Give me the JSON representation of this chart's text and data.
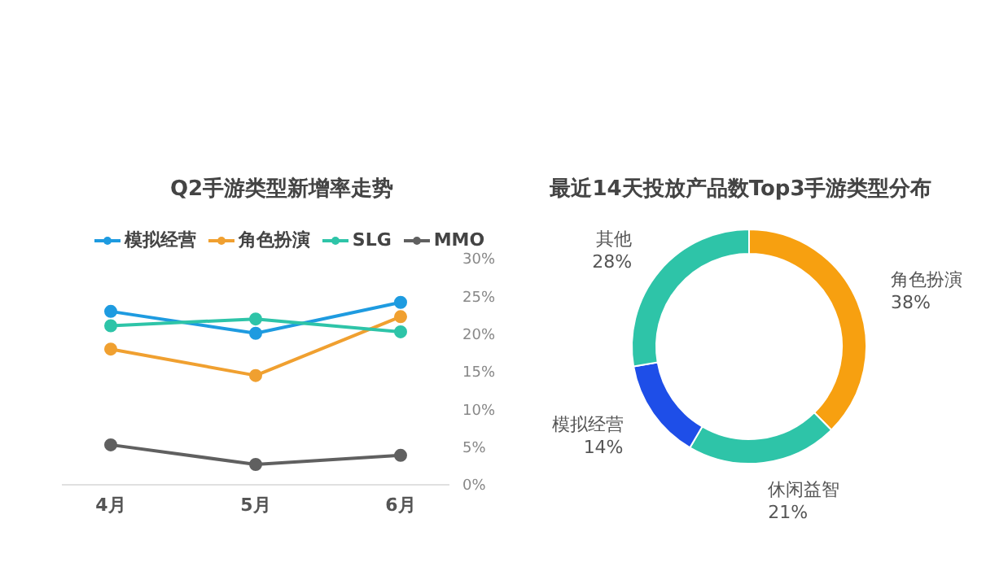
{
  "chart_data": [
    {
      "type": "line",
      "title": "Q2手游类型新增率走势",
      "categories": [
        "4月",
        "5月",
        "6月"
      ],
      "series": [
        {
          "name": "模拟经营",
          "color": "#1e9be0",
          "values": [
            23.0,
            20.1,
            24.2
          ]
        },
        {
          "name": "角色扮演",
          "color": "#f0a030",
          "values": [
            18.0,
            14.5,
            22.3
          ]
        },
        {
          "name": "SLG",
          "color": "#2ec4a8",
          "values": [
            21.1,
            22.0,
            20.3
          ]
        },
        {
          "name": "MMO",
          "color": "#606060",
          "values": [
            5.3,
            2.7,
            3.9
          ]
        }
      ],
      "ylim": [
        0,
        30
      ],
      "yticks": [
        {
          "value": 0,
          "label": "0%"
        },
        {
          "value": 5,
          "label": "5%"
        },
        {
          "value": 10,
          "label": "10%"
        },
        {
          "value": 15,
          "label": "15%"
        },
        {
          "value": 20,
          "label": "20%"
        },
        {
          "value": 25,
          "label": "25%"
        },
        {
          "value": 30,
          "label": "30%"
        }
      ],
      "legend": "top",
      "marker": "circle",
      "grid": false
    },
    {
      "type": "donut",
      "title": "最近14天投放产品数Top3手游类型分布",
      "categories": [
        "角色扮演",
        "休闲益智",
        "模拟经营",
        "其他"
      ],
      "values": [
        38,
        21,
        14,
        28
      ],
      "value_labels": [
        "38%",
        "21%",
        "14%",
        "28%"
      ],
      "colors": [
        "#f7a010",
        "#2ec4a8",
        "#1e4ee8",
        "#2ec4a8"
      ]
    }
  ]
}
